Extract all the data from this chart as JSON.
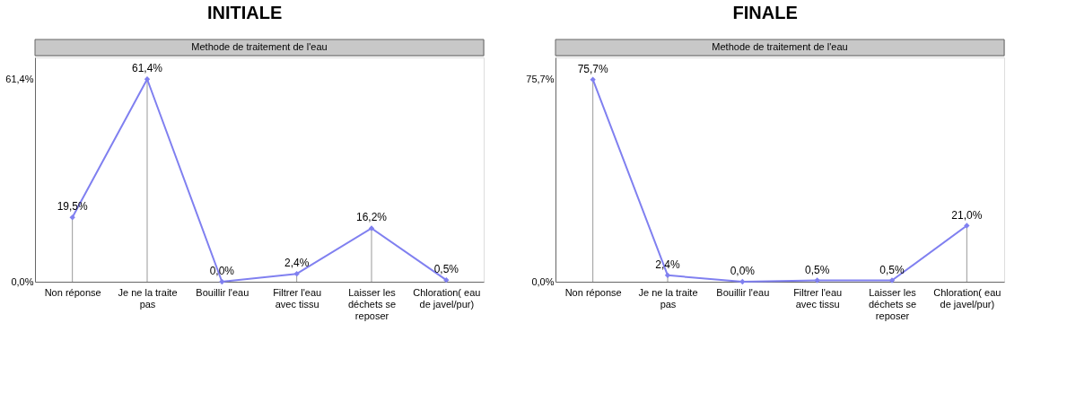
{
  "chart_data": [
    {
      "type": "line",
      "title": "INITIALE",
      "subtitle": "Methode de traitement de l'eau",
      "categories": [
        "Non réponse",
        "Je ne la traite pas",
        "Bouillir l'eau",
        "Filtrer l'eau avec tissu",
        "Laisser les déchets se reposer",
        "Chloration( eau de javel/pur)"
      ],
      "values": [
        19.5,
        61.4,
        0.0,
        2.4,
        16.2,
        0.5
      ],
      "value_labels": [
        "19,5%",
        "61,4%",
        "0,0%",
        "2,4%",
        "16,2%",
        "0,5%"
      ],
      "color": "#8080f0",
      "marker": "diamond",
      "line_style": "solid",
      "ylim": [
        0,
        68
      ],
      "yticks": [
        {
          "value": 0,
          "label": "0,0%"
        },
        {
          "value": 61.4,
          "label": "61,4%"
        }
      ]
    },
    {
      "type": "line",
      "title": "FINALE",
      "subtitle": "Methode de traitement de l'eau",
      "categories": [
        "Non réponse",
        "Je ne la traite pas",
        "Bouillir l'eau",
        "Filtrer l'eau avec tissu",
        "Laisser les déchets se reposer",
        "Chloration( eau de javel/pur)"
      ],
      "values": [
        75.7,
        2.4,
        0.0,
        0.5,
        0.5,
        21.0
      ],
      "value_labels": [
        "75,7%",
        "2,4%",
        "0,0%",
        "0,5%",
        "0,5%",
        "21,0%"
      ],
      "color": "#8080f0",
      "marker": "diamond",
      "line_style": "solid",
      "ylim": [
        0,
        84
      ],
      "yticks": [
        {
          "value": 0,
          "label": "0,0%"
        },
        {
          "value": 75.7,
          "label": "75,7%"
        }
      ]
    }
  ]
}
